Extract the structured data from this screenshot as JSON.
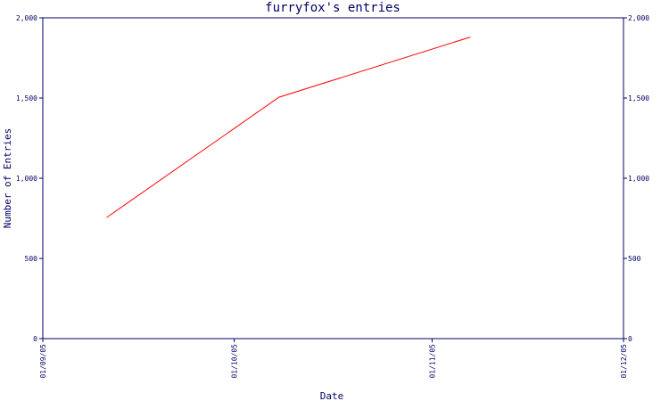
{
  "chart_data": {
    "type": "line",
    "title": "furryfox's entries",
    "xlabel": "Date",
    "ylabel": "Number of Entries",
    "x_ticks": [
      "01/09/05",
      "01/10/05",
      "01/11/05",
      "01/12/05"
    ],
    "x_range": [
      "01/09/05",
      "01/12/05"
    ],
    "ylim": [
      0,
      2000
    ],
    "y_ticks": [
      "0",
      "500",
      "1,000",
      "1,500",
      "2,000"
    ],
    "y_tick_values": [
      0,
      500,
      1000,
      1500,
      2000
    ],
    "right_axis": true,
    "grid": false,
    "series": [
      {
        "color": "#ff0000",
        "x": [
          "2005-09-11",
          "2005-10-08",
          "2005-11-07"
        ],
        "y": [
          755,
          1505,
          1880
        ]
      }
    ]
  }
}
